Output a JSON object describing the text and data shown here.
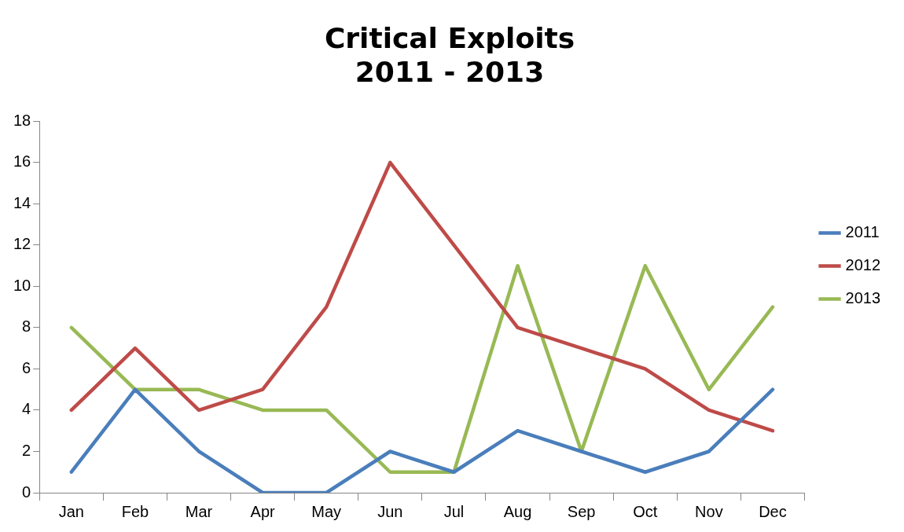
{
  "chart_data": {
    "type": "line",
    "title": "Critical Exploits\n2011 - 2013",
    "categories": [
      "Jan",
      "Feb",
      "Mar",
      "Apr",
      "May",
      "Jun",
      "Jul",
      "Aug",
      "Sep",
      "Oct",
      "Nov",
      "Dec"
    ],
    "series": [
      {
        "name": "2011",
        "color": "#4a7ebb",
        "values": [
          1,
          5,
          2,
          0,
          0,
          2,
          1,
          3,
          2,
          1,
          2,
          5
        ]
      },
      {
        "name": "2012",
        "color": "#be4b48",
        "values": [
          4,
          7,
          4,
          5,
          9,
          16,
          12,
          8,
          7,
          6,
          4,
          3
        ]
      },
      {
        "name": "2013",
        "color": "#98b954",
        "values": [
          8,
          5,
          5,
          4,
          4,
          1,
          1,
          11,
          2,
          11,
          5,
          9
        ]
      }
    ],
    "ylim": [
      0,
      18
    ],
    "yticks": [
      0,
      2,
      4,
      6,
      8,
      10,
      12,
      14,
      16,
      18
    ],
    "grid": false,
    "legend": "right",
    "marker": "none",
    "line_style": "solid"
  }
}
